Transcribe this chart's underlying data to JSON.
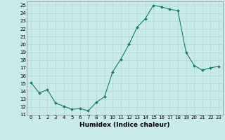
{
  "x": [
    0,
    1,
    2,
    3,
    4,
    5,
    6,
    7,
    8,
    9,
    10,
    11,
    12,
    13,
    14,
    15,
    16,
    17,
    18,
    19,
    20,
    21,
    22,
    23
  ],
  "y": [
    15.1,
    13.8,
    14.2,
    12.5,
    12.1,
    11.7,
    11.8,
    11.5,
    12.6,
    13.3,
    16.5,
    18.1,
    20.0,
    22.2,
    23.3,
    25.0,
    24.8,
    24.5,
    24.3,
    19.0,
    17.3,
    16.7,
    17.0,
    17.2
  ],
  "xlim": [
    -0.5,
    23.5
  ],
  "ylim": [
    11,
    25.5
  ],
  "yticks": [
    11,
    12,
    13,
    14,
    15,
    16,
    17,
    18,
    19,
    20,
    21,
    22,
    23,
    24,
    25
  ],
  "xticks": [
    0,
    1,
    2,
    3,
    4,
    5,
    6,
    7,
    8,
    9,
    10,
    11,
    12,
    13,
    14,
    15,
    16,
    17,
    18,
    19,
    20,
    21,
    22,
    23
  ],
  "xlabel": "Humidex (Indice chaleur)",
  "line_color": "#1a7a6e",
  "marker_color": "#1a7a6e",
  "bg_color": "#c8eae8",
  "grid_color": "#b0d8d4",
  "tick_fontsize": 5.0,
  "xlabel_fontsize": 6.5
}
